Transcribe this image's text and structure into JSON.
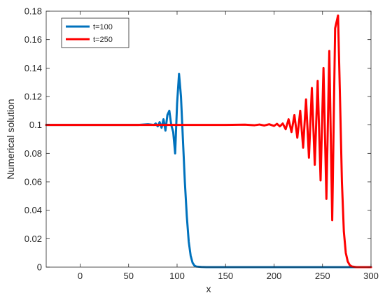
{
  "chart_data": {
    "type": "line",
    "title": "",
    "xlabel": "x",
    "ylabel": "Numerical solution",
    "xlim": [
      -35,
      300
    ],
    "ylim": [
      0,
      0.18
    ],
    "xticks": [
      0,
      50,
      100,
      150,
      200,
      250,
      300
    ],
    "yticks": [
      0,
      0.02,
      0.04,
      0.06,
      0.08,
      0.1,
      0.12,
      0.14,
      0.16,
      0.18
    ],
    "grid": false,
    "legend_position": "top-left",
    "series": [
      {
        "name": "t=100",
        "color": "#0072BD",
        "x": [
          -35,
          60,
          70,
          76,
          78,
          80,
          82,
          84,
          86,
          88,
          90,
          92,
          94,
          96,
          98,
          100,
          102,
          104,
          106,
          108,
          110,
          112,
          114,
          116,
          118,
          120,
          125,
          130,
          300
        ],
        "y": [
          0.1,
          0.1,
          0.1005,
          0.1,
          0.101,
          0.099,
          0.102,
          0.098,
          0.104,
          0.096,
          0.107,
          0.11,
          0.1,
          0.095,
          0.08,
          0.115,
          0.136,
          0.12,
          0.09,
          0.06,
          0.036,
          0.018,
          0.008,
          0.003,
          0.001,
          0.0004,
          0.0001,
          0,
          0
        ]
      },
      {
        "name": "t=250",
        "color": "#FF0000",
        "x": [
          -35,
          150,
          170,
          180,
          185,
          190,
          195,
          200,
          203,
          206,
          209,
          212,
          215,
          218,
          221,
          224,
          227,
          230,
          233,
          236,
          239,
          242,
          245,
          248,
          251,
          254,
          257,
          260,
          263,
          266,
          268,
          270,
          272,
          274,
          276,
          278,
          280,
          285,
          300
        ],
        "y": [
          0.1,
          0.1,
          0.1002,
          0.0998,
          0.1003,
          0.0996,
          0.1005,
          0.0993,
          0.1008,
          0.099,
          0.101,
          0.097,
          0.104,
          0.095,
          0.107,
          0.091,
          0.11,
          0.084,
          0.118,
          0.077,
          0.126,
          0.072,
          0.131,
          0.061,
          0.14,
          0.048,
          0.152,
          0.033,
          0.168,
          0.177,
          0.12,
          0.06,
          0.025,
          0.01,
          0.004,
          0.0015,
          0.0005,
          0,
          0
        ]
      }
    ]
  }
}
